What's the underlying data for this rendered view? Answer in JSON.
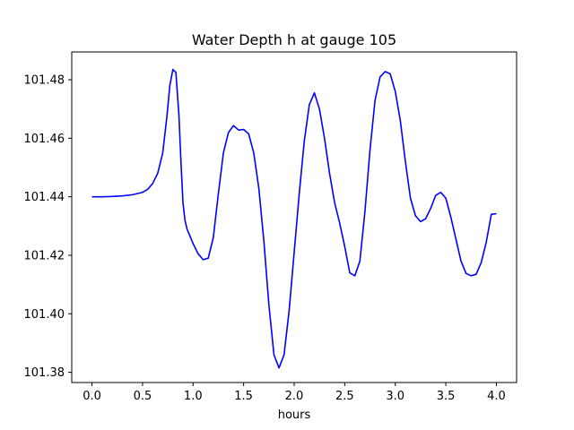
{
  "chart_data": {
    "type": "line",
    "title": "Water Depth h at gauge 105",
    "xlabel": "hours",
    "ylabel": "",
    "xlim": [
      -0.2,
      4.2
    ],
    "ylim": [
      101.3765,
      101.4895
    ],
    "xticks": [
      0.0,
      0.5,
      1.0,
      1.5,
      2.0,
      2.5,
      3.0,
      3.5,
      4.0
    ],
    "xtick_labels": [
      "0.0",
      "0.5",
      "1.0",
      "1.5",
      "2.0",
      "2.5",
      "3.0",
      "3.5",
      "4.0"
    ],
    "yticks": [
      101.38,
      101.4,
      101.42,
      101.44,
      101.46,
      101.48
    ],
    "ytick_labels": [
      "101.38",
      "101.40",
      "101.42",
      "101.44",
      "101.46",
      "101.48"
    ],
    "grid": false,
    "legend": "none",
    "series": [
      {
        "color": "#0000ff",
        "x": [
          0.0,
          0.1,
          0.2,
          0.3,
          0.4,
          0.5,
          0.55,
          0.6,
          0.65,
          0.7,
          0.74,
          0.77,
          0.8,
          0.83,
          0.86,
          0.88,
          0.9,
          0.92,
          0.94,
          0.97,
          1.0,
          1.05,
          1.1,
          1.15,
          1.2,
          1.25,
          1.3,
          1.35,
          1.4,
          1.45,
          1.5,
          1.55,
          1.6,
          1.65,
          1.7,
          1.75,
          1.8,
          1.85,
          1.9,
          1.95,
          2.0,
          2.05,
          2.1,
          2.15,
          2.2,
          2.25,
          2.3,
          2.35,
          2.4,
          2.45,
          2.5,
          2.55,
          2.6,
          2.65,
          2.7,
          2.75,
          2.8,
          2.85,
          2.9,
          2.95,
          3.0,
          3.05,
          3.1,
          3.15,
          3.2,
          3.25,
          3.3,
          3.35,
          3.4,
          3.45,
          3.5,
          3.55,
          3.6,
          3.65,
          3.7,
          3.75,
          3.8,
          3.85,
          3.9,
          3.95,
          4.0
        ],
        "y": [
          101.44,
          101.44,
          101.4401,
          101.4403,
          101.4407,
          101.4415,
          101.4425,
          101.4445,
          101.448,
          101.455,
          101.467,
          101.478,
          101.4835,
          101.4825,
          101.468,
          101.452,
          101.438,
          101.432,
          101.429,
          101.4265,
          101.424,
          101.4205,
          101.4185,
          101.419,
          101.426,
          101.441,
          101.455,
          101.462,
          101.4643,
          101.4628,
          101.463,
          101.4615,
          101.455,
          101.443,
          101.425,
          101.403,
          101.386,
          101.3815,
          101.386,
          101.401,
          101.421,
          101.441,
          101.459,
          101.4715,
          101.4755,
          101.47,
          101.46,
          101.448,
          101.438,
          101.431,
          101.423,
          101.414,
          101.413,
          101.418,
          101.435,
          101.456,
          101.473,
          101.481,
          101.4828,
          101.482,
          101.476,
          101.466,
          101.452,
          101.4395,
          101.4335,
          101.4315,
          101.4325,
          101.436,
          101.4405,
          101.4415,
          101.4395,
          101.433,
          101.4255,
          101.418,
          101.4138,
          101.413,
          101.4135,
          101.4175,
          101.4245,
          101.434,
          101.4342
        ]
      }
    ]
  }
}
